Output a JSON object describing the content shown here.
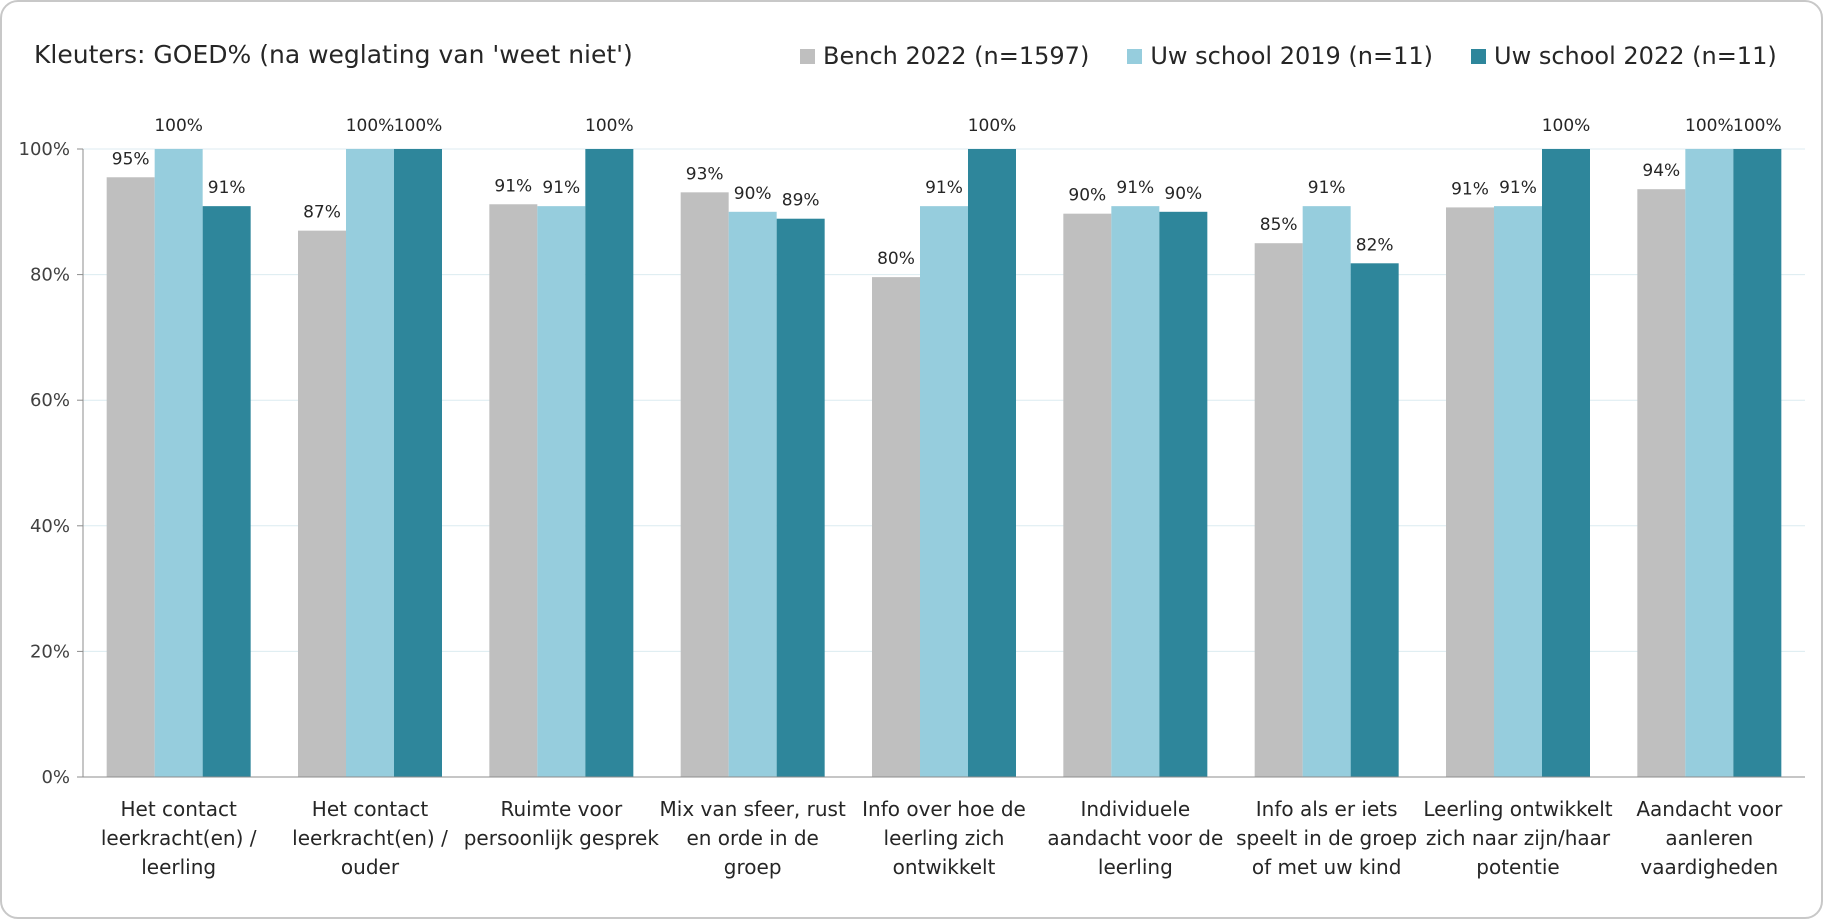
{
  "chart_data": {
    "type": "bar",
    "title": "Kleuters: GOED% (na weglating van 'weet niet')",
    "categories": [
      [
        "Het contact",
        "leerkracht(en) /",
        "leerling"
      ],
      [
        "Het contact",
        "leerkracht(en) /",
        "ouder"
      ],
      [
        "Ruimte voor",
        "persoonlijk gesprek"
      ],
      [
        "Mix van sfeer, rust",
        "en orde in de",
        "groep"
      ],
      [
        "Info over hoe de",
        "leerling zich",
        "ontwikkelt"
      ],
      [
        "Individuele",
        "aandacht voor de",
        "leerling"
      ],
      [
        "Info als er iets",
        "speelt in de groep",
        "of met uw kind"
      ],
      [
        "Leerling ontwikkelt",
        "zich naar zijn/haar",
        "potentie"
      ],
      [
        "Aandacht voor",
        "aanleren",
        "vaardigheden"
      ]
    ],
    "series": [
      {
        "name": "Bench 2022 (n=1597)",
        "color": "#bfbfbf",
        "values": [
          95.5,
          87.0,
          91.2,
          93.1,
          79.6,
          89.7,
          85.0,
          90.7,
          93.6
        ],
        "labels": [
          "95%",
          "87%",
          "91%",
          "93%",
          "80%",
          "90%",
          "85%",
          "91%",
          "94%"
        ]
      },
      {
        "name": "Uw school 2019 (n=11)",
        "color": "#96cddd",
        "values": [
          100,
          100,
          90.9,
          90.0,
          90.9,
          90.9,
          90.9,
          90.9,
          100
        ],
        "labels": [
          "100%",
          "100%",
          "91%",
          "90%",
          "91%",
          "91%",
          "91%",
          "91%",
          "100%"
        ]
      },
      {
        "name": "Uw school 2022 (n=11)",
        "color": "#2e869b",
        "values": [
          90.9,
          100,
          100,
          88.9,
          100,
          90.0,
          81.8,
          100,
          100
        ],
        "labels": [
          "91%",
          "100%",
          "100%",
          "89%",
          "100%",
          "90%",
          "82%",
          "100%",
          "100%"
        ]
      }
    ],
    "ylim": [
      0,
      100
    ],
    "yticks": [
      "0%",
      "20%",
      "40%",
      "60%",
      "80%",
      "100%"
    ],
    "xlabel": "",
    "ylabel": "",
    "grid": true,
    "gridColor": "#dcebf0",
    "legend": "top"
  }
}
